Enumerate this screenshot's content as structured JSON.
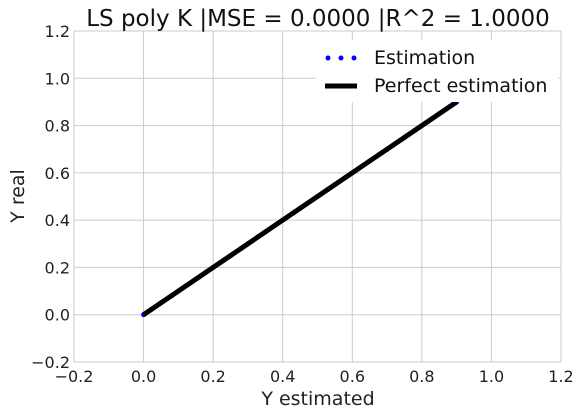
{
  "chart_data": {
    "type": "scatter",
    "title": "LS poly K |MSE = 0.0000 |R^2 = 1.0000",
    "xlabel": "Y estimated",
    "ylabel": "Y real",
    "xlim": [
      -0.2,
      1.2
    ],
    "ylim": [
      -0.2,
      1.2
    ],
    "x_ticks": [
      "−0.2",
      "0.0",
      "0.2",
      "0.4",
      "0.6",
      "0.8",
      "1.0",
      "1.2"
    ],
    "y_ticks": [
      "−0.2",
      "0.0",
      "0.2",
      "0.4",
      "0.6",
      "0.8",
      "1.0",
      "1.2"
    ],
    "grid": true,
    "legend_position": "top-right",
    "series": [
      {
        "name": "Estimation",
        "kind": "scatter",
        "color": "#0000ff",
        "x": [
          0.0,
          0.02,
          0.05,
          0.08,
          0.1,
          0.13,
          0.15,
          0.18,
          0.2,
          0.23,
          0.25,
          0.28,
          0.3,
          0.33,
          0.35,
          0.38,
          0.4,
          0.43,
          0.45,
          0.48,
          0.5,
          0.53,
          0.55,
          0.58,
          0.6,
          0.63,
          0.65,
          0.68,
          0.7,
          0.73,
          0.75,
          0.78,
          0.8,
          0.83,
          0.85,
          0.88,
          0.9
        ],
        "y": [
          0.0,
          0.02,
          0.05,
          0.08,
          0.1,
          0.13,
          0.15,
          0.18,
          0.2,
          0.23,
          0.25,
          0.28,
          0.3,
          0.33,
          0.35,
          0.38,
          0.4,
          0.43,
          0.45,
          0.48,
          0.5,
          0.53,
          0.55,
          0.58,
          0.6,
          0.63,
          0.65,
          0.68,
          0.7,
          0.73,
          0.75,
          0.78,
          0.8,
          0.83,
          0.85,
          0.88,
          0.9
        ]
      },
      {
        "name": "Perfect estimation",
        "kind": "line",
        "color": "#000000",
        "x": [
          0.0,
          0.9
        ],
        "y": [
          0.0,
          0.9
        ]
      }
    ]
  }
}
